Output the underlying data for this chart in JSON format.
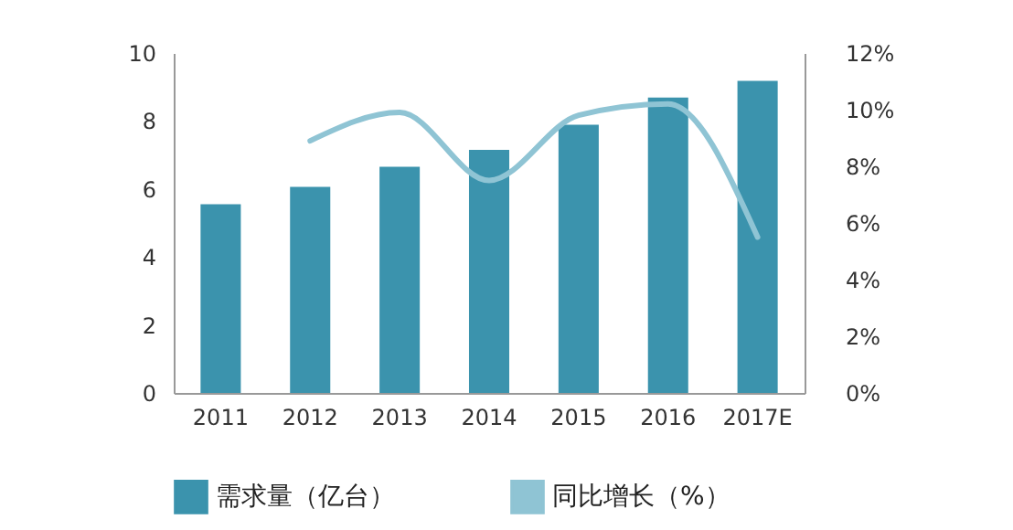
{
  "chart_data": {
    "type": "bar",
    "categories": [
      "2011",
      "2012",
      "2013",
      "2014",
      "2015",
      "2016",
      "2017E"
    ],
    "series": [
      {
        "name": "需求量（亿台）",
        "color": "#3b93ad",
        "values": [
          5.55,
          6.06,
          6.65,
          7.15,
          7.89,
          8.69,
          9.18
        ]
      },
      {
        "name": "同比增长（%）",
        "type": "line",
        "axis": "y2",
        "color": "#8fc4d4",
        "values": [
          null,
          8.9,
          9.9,
          7.5,
          9.8,
          10.2,
          5.5
        ]
      }
    ],
    "ylim": [
      0,
      10
    ],
    "yticks": [
      0,
      2,
      4,
      6,
      8,
      10
    ],
    "y2lim": [
      0,
      12
    ],
    "y2ticks": [
      {
        "value": 0,
        "label": "0%"
      },
      {
        "value": 2,
        "label": "2%"
      },
      {
        "value": 4,
        "label": "4%"
      },
      {
        "value": 6,
        "label": "6%"
      },
      {
        "value": 8,
        "label": "8%"
      },
      {
        "value": 10,
        "label": "10%"
      },
      {
        "value": 12,
        "label": "12%"
      }
    ],
    "grid": false,
    "legend": "bottom",
    "marker": "none",
    "line_style": "solid"
  }
}
